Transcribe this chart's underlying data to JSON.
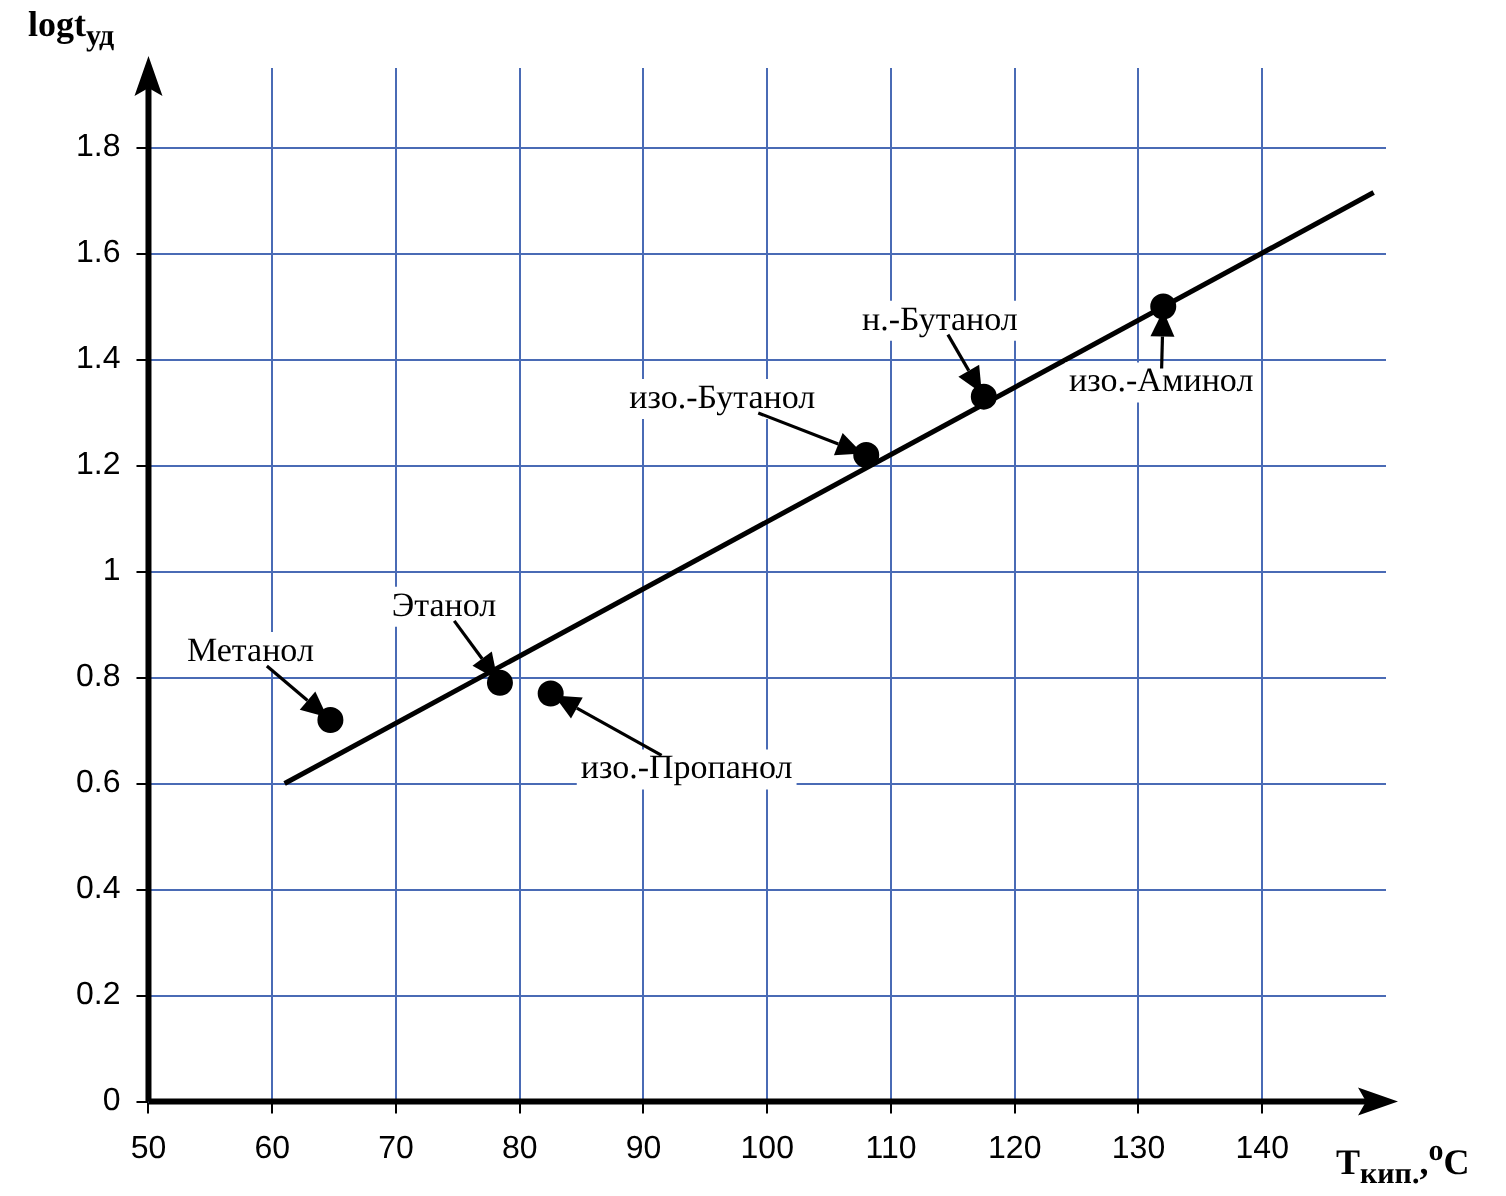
{
  "chart_data": {
    "type": "scatter",
    "xlabel": "T$_{кип.}$,$^{o}$C",
    "ylabel": "logt$_{уд}$",
    "xlim": [
      50,
      150
    ],
    "xticks": [
      50,
      60,
      70,
      80,
      90,
      100,
      110,
      120,
      130,
      140
    ],
    "ylim": [
      0,
      1.95
    ],
    "yticks": [
      0,
      0.2,
      0.4,
      0.6,
      0.8,
      1,
      1.2,
      1.4,
      1.6,
      1.8
    ],
    "grid": true,
    "marker": "circle",
    "series": [
      {
        "color": "#000000",
        "x": [
          64.7,
          78.4,
          82.5,
          108,
          117.5,
          132
        ],
        "values": [
          0.72,
          0.79,
          0.77,
          1.22,
          1.33,
          1.5
        ]
      },
      {
        "type": "line",
        "color": "#000000",
        "x": [
          61,
          149
        ],
        "values": [
          0.6,
          1.715
        ],
        "marker": "none",
        "line_style": "solid"
      }
    ],
    "annotations": [
      {
        "text": "Метанол",
        "x": 64.7,
        "y": 0.72
      },
      {
        "text": "Этанол",
        "x": 78.4,
        "y": 0.79
      },
      {
        "text": "изо.-Пропанол",
        "x": 82.5,
        "y": 0.77
      },
      {
        "text": "изо.-Бутанол",
        "x": 108,
        "y": 1.22
      },
      {
        "text": "н.-Бутанол",
        "x": 117.5,
        "y": 1.33
      },
      {
        "text": "изо.-Аминол",
        "x": 132,
        "y": 1.5
      }
    ]
  }
}
